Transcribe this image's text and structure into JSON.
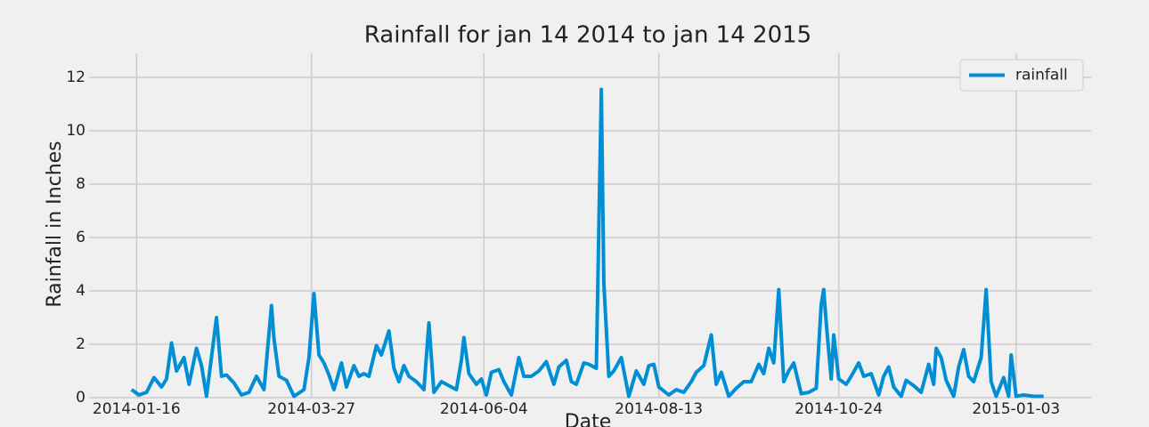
{
  "chart_data": {
    "type": "line",
    "title": "Rainfall for jan 14 2014 to jan 14 2015",
    "x_label": "Date",
    "y_label": "Rainfall in Inches",
    "x": [
      "2014-01-14",
      "2014-01-17",
      "2014-01-20",
      "2014-01-23",
      "2014-01-26",
      "2014-01-28",
      "2014-01-30",
      "2014-02-01",
      "2014-02-04",
      "2014-02-06",
      "2014-02-09",
      "2014-02-11",
      "2014-02-13",
      "2014-02-17",
      "2014-02-19",
      "2014-02-21",
      "2014-02-24",
      "2014-02-27",
      "2014-03-02",
      "2014-03-05",
      "2014-03-08",
      "2014-03-11",
      "2014-03-12",
      "2014-03-14",
      "2014-03-17",
      "2014-03-20",
      "2014-03-24",
      "2014-03-26",
      "2014-03-28",
      "2014-03-30",
      "2014-04-01",
      "2014-04-03",
      "2014-04-05",
      "2014-04-08",
      "2014-04-10",
      "2014-04-13",
      "2014-04-15",
      "2014-04-17",
      "2014-04-19",
      "2014-04-22",
      "2014-04-24",
      "2014-04-27",
      "2014-04-29",
      "2014-05-01",
      "2014-05-03",
      "2014-05-05",
      "2014-05-08",
      "2014-05-11",
      "2014-05-13",
      "2014-05-15",
      "2014-05-18",
      "2014-05-21",
      "2014-05-24",
      "2014-05-26",
      "2014-05-27",
      "2014-05-29",
      "2014-06-01",
      "2014-06-03",
      "2014-06-05",
      "2014-06-07",
      "2014-06-10",
      "2014-06-12",
      "2014-06-15",
      "2014-06-18",
      "2014-06-20",
      "2014-06-23",
      "2014-06-26",
      "2014-06-29",
      "2014-07-02",
      "2014-07-04",
      "2014-07-07",
      "2014-07-09",
      "2014-07-11",
      "2014-07-14",
      "2014-07-16",
      "2014-07-19",
      "2014-07-21",
      "2014-07-22",
      "2014-07-24",
      "2014-07-26",
      "2014-07-29",
      "2014-08-01",
      "2014-08-04",
      "2014-08-07",
      "2014-08-09",
      "2014-08-11",
      "2014-08-13",
      "2014-08-17",
      "2014-08-20",
      "2014-08-23",
      "2014-08-26",
      "2014-08-28",
      "2014-08-31",
      "2014-09-03",
      "2014-09-05",
      "2014-09-07",
      "2014-09-10",
      "2014-09-13",
      "2014-09-16",
      "2014-09-19",
      "2014-09-22",
      "2014-09-24",
      "2014-09-26",
      "2014-09-28",
      "2014-09-30",
      "2014-10-02",
      "2014-10-04",
      "2014-10-06",
      "2014-10-09",
      "2014-10-12",
      "2014-10-15",
      "2014-10-17",
      "2014-10-18",
      "2014-10-19",
      "2014-10-21",
      "2014-10-22",
      "2014-10-24",
      "2014-10-27",
      "2014-10-29",
      "2014-11-01",
      "2014-11-03",
      "2014-11-06",
      "2014-11-09",
      "2014-11-11",
      "2014-11-13",
      "2014-11-15",
      "2014-11-18",
      "2014-11-20",
      "2014-11-23",
      "2014-11-26",
      "2014-11-29",
      "2014-12-01",
      "2014-12-02",
      "2014-12-04",
      "2014-12-06",
      "2014-12-09",
      "2014-12-11",
      "2014-12-13",
      "2014-12-15",
      "2014-12-17",
      "2014-12-20",
      "2014-12-22",
      "2014-12-24",
      "2014-12-26",
      "2014-12-29",
      "2014-12-31",
      "2015-01-01",
      "2015-01-03",
      "2015-01-06",
      "2015-01-10",
      "2015-01-14"
    ],
    "series": [
      {
        "name": "rainfall",
        "color": "#008fd5",
        "values": [
          0.3,
          0.1,
          0.2,
          0.75,
          0.4,
          0.7,
          2.05,
          1.0,
          1.5,
          0.5,
          1.85,
          1.2,
          0.05,
          3.0,
          0.8,
          0.85,
          0.55,
          0.1,
          0.2,
          0.8,
          0.3,
          3.45,
          2.2,
          0.8,
          0.65,
          0.05,
          0.3,
          1.5,
          3.9,
          1.6,
          1.3,
          0.85,
          0.3,
          1.3,
          0.4,
          1.2,
          0.8,
          0.9,
          0.8,
          1.95,
          1.6,
          2.5,
          1.1,
          0.6,
          1.2,
          0.8,
          0.6,
          0.3,
          2.8,
          0.2,
          0.6,
          0.45,
          0.3,
          1.4,
          2.25,
          0.9,
          0.5,
          0.7,
          0.1,
          0.95,
          1.05,
          0.6,
          0.1,
          1.5,
          0.8,
          0.8,
          1.0,
          1.35,
          0.5,
          1.15,
          1.4,
          0.6,
          0.5,
          1.3,
          1.25,
          1.1,
          11.55,
          4.3,
          0.8,
          1.0,
          1.5,
          0.05,
          1.0,
          0.5,
          1.2,
          1.25,
          0.4,
          0.1,
          0.3,
          0.2,
          0.6,
          0.95,
          1.2,
          2.35,
          0.5,
          0.95,
          0.05,
          0.35,
          0.6,
          0.6,
          1.25,
          0.9,
          1.85,
          1.3,
          4.05,
          0.6,
          1.0,
          1.3,
          0.15,
          0.2,
          0.35,
          3.5,
          4.05,
          2.8,
          0.7,
          2.35,
          0.7,
          0.5,
          0.8,
          1.3,
          0.8,
          0.9,
          0.1,
          0.8,
          1.15,
          0.4,
          0.05,
          0.65,
          0.45,
          0.2,
          1.25,
          0.5,
          1.85,
          1.5,
          0.65,
          0.05,
          1.15,
          1.8,
          0.8,
          0.6,
          1.5,
          4.05,
          0.6,
          0.05,
          0.75,
          0.05,
          1.6,
          0.05,
          0.1,
          0.05,
          0.05
        ]
      }
    ],
    "xlim": [
      "2013-12-28",
      "2015-02-02"
    ],
    "xticks": [
      "2014-01-16",
      "2014-03-27",
      "2014-06-04",
      "2014-08-13",
      "2014-10-24",
      "2015-01-03"
    ],
    "ylim": [
      0,
      12.9
    ],
    "yticks": [
      0,
      2,
      4,
      6,
      8,
      10,
      12
    ],
    "grid": true,
    "legend": "upper right"
  }
}
